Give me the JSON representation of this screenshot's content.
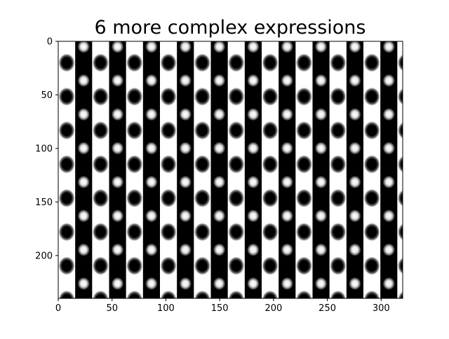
{
  "chart_data": {
    "type": "heatmap",
    "title": "6 more complex expressions",
    "colormap": "gray",
    "image_shape": [
      240,
      320
    ],
    "xlim": [
      0,
      320
    ],
    "ylim": [
      240,
      0
    ],
    "y_axis_inverted": true,
    "x_ticks": [
      0,
      50,
      100,
      150,
      200,
      250,
      300
    ],
    "x_tick_labels": [
      "0",
      "50",
      "100",
      "150",
      "200",
      "250",
      "300"
    ],
    "y_ticks": [
      0,
      50,
      100,
      150,
      200
    ],
    "y_tick_labels": [
      "0",
      "50",
      "100",
      "150",
      "200"
    ],
    "pattern": {
      "description": "vertical alternating black/white stripes with periodic elliptical blobs",
      "stripe_period_x": 31.5,
      "stripe_offset_x": 0,
      "blob_period_y": 31.6,
      "dark_blob_offset_y": 20,
      "light_blob_offset_y": 5
    },
    "grid": false,
    "legend": "none"
  }
}
